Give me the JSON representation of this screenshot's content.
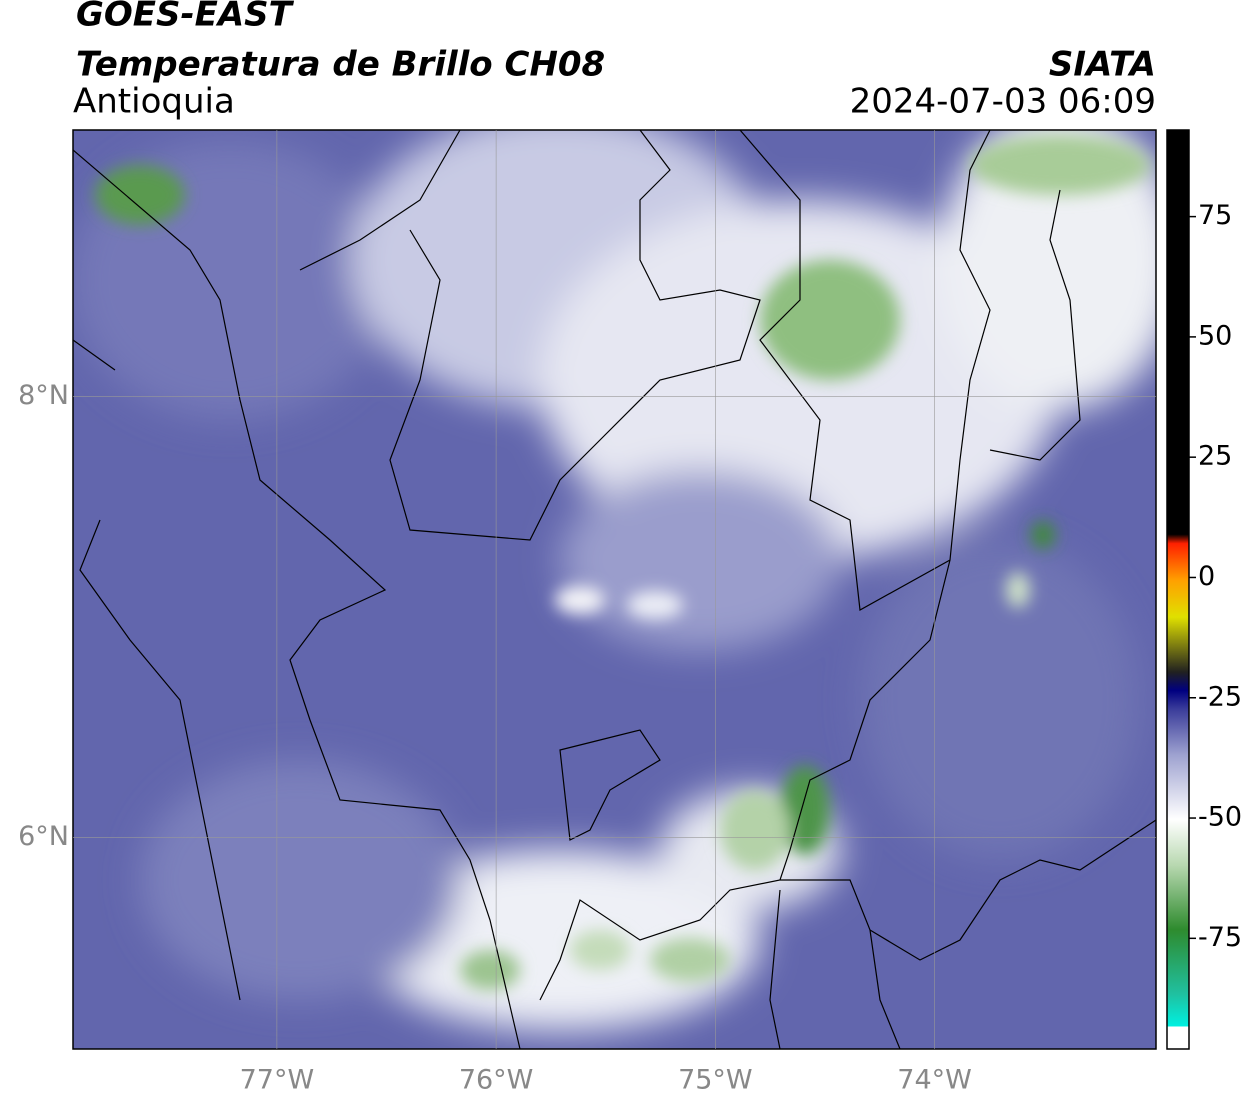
{
  "header": {
    "title": "GOES-EAST",
    "subtitle": "Temperatura de Brillo CH08",
    "region": "Antioquia",
    "source": "SIATA",
    "datetime": "2024-07-03 06:09"
  },
  "map": {
    "lonlim": [
      -77.93,
      -72.99
    ],
    "latlim": [
      5.04,
      9.21
    ],
    "lon_ticks": [
      {
        "value": -77,
        "label": "77°W"
      },
      {
        "value": -76,
        "label": "76°W"
      },
      {
        "value": -75,
        "label": "75°W"
      },
      {
        "value": -74,
        "label": "74°W"
      }
    ],
    "lat_ticks": [
      {
        "value": 8,
        "label": "8°N"
      },
      {
        "value": 6,
        "label": "6°N"
      }
    ]
  },
  "colorbar": {
    "lim": [
      -98,
      93
    ],
    "ticks": [
      75,
      50,
      25,
      0,
      -25,
      -50,
      -75
    ]
  }
}
